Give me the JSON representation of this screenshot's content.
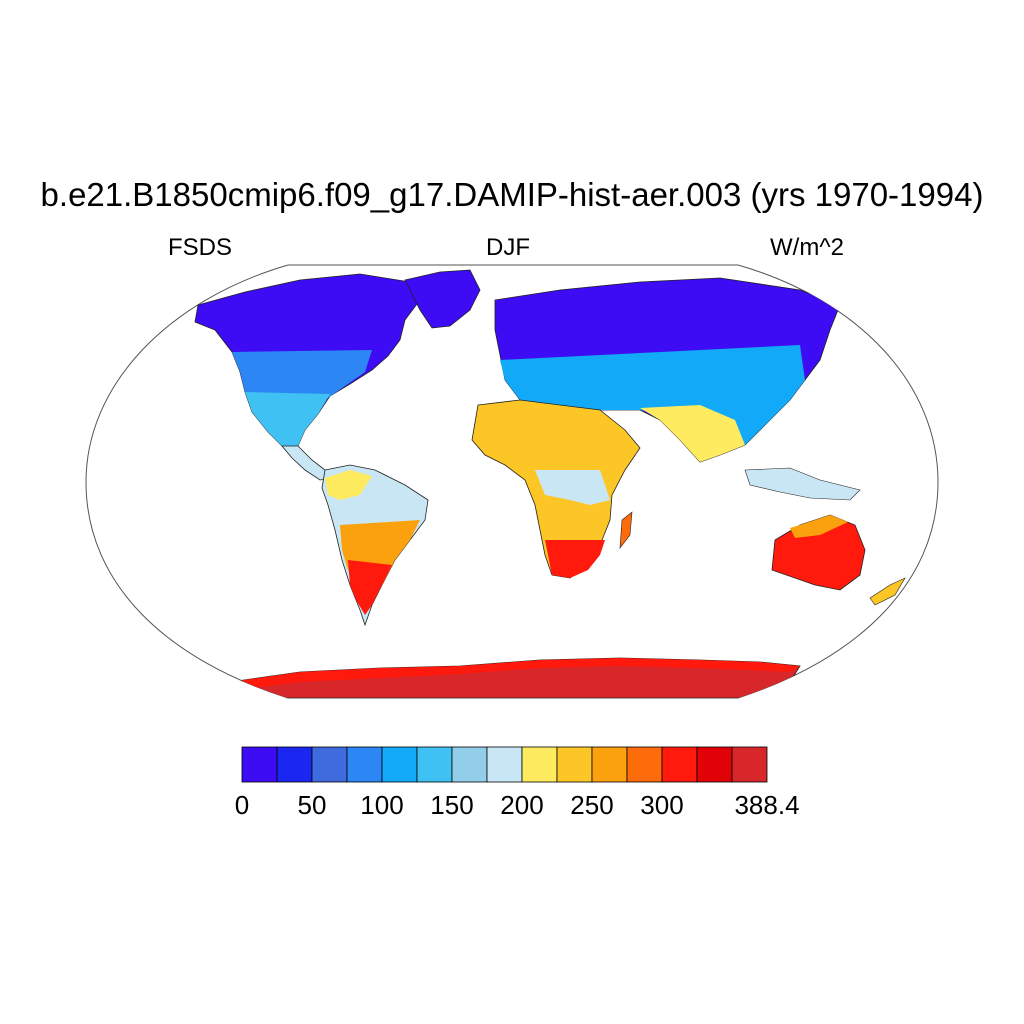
{
  "header": {
    "title": "b.e21.B1850cmip6.f09_g17.DAMIP-hist-aer.003 (yrs 1970-1994)",
    "variable": "FSDS",
    "season": "DJF",
    "units": "W/m^2"
  },
  "map": {
    "projection": "robinson",
    "field_description": "surface downwelling shortwave flux over land",
    "ocean_masked": true
  },
  "colorbar": {
    "colors": [
      "#3e0bf5",
      "#1b26f0",
      "#3f6bde",
      "#2c86f3",
      "#11a9f8",
      "#3fc2f3",
      "#92cdea",
      "#c9e6f5",
      "#ffeb5f",
      "#fcc726",
      "#fba10e",
      "#fd6b0b",
      "#ff1a0d",
      "#e10208",
      "#d7272b"
    ],
    "tick_labels": [
      "0",
      "50",
      "100",
      "150",
      "200",
      "250",
      "300",
      "388.4"
    ],
    "tick_label_levels": [
      0,
      50,
      100,
      150,
      200,
      250,
      300,
      388.4
    ]
  }
}
